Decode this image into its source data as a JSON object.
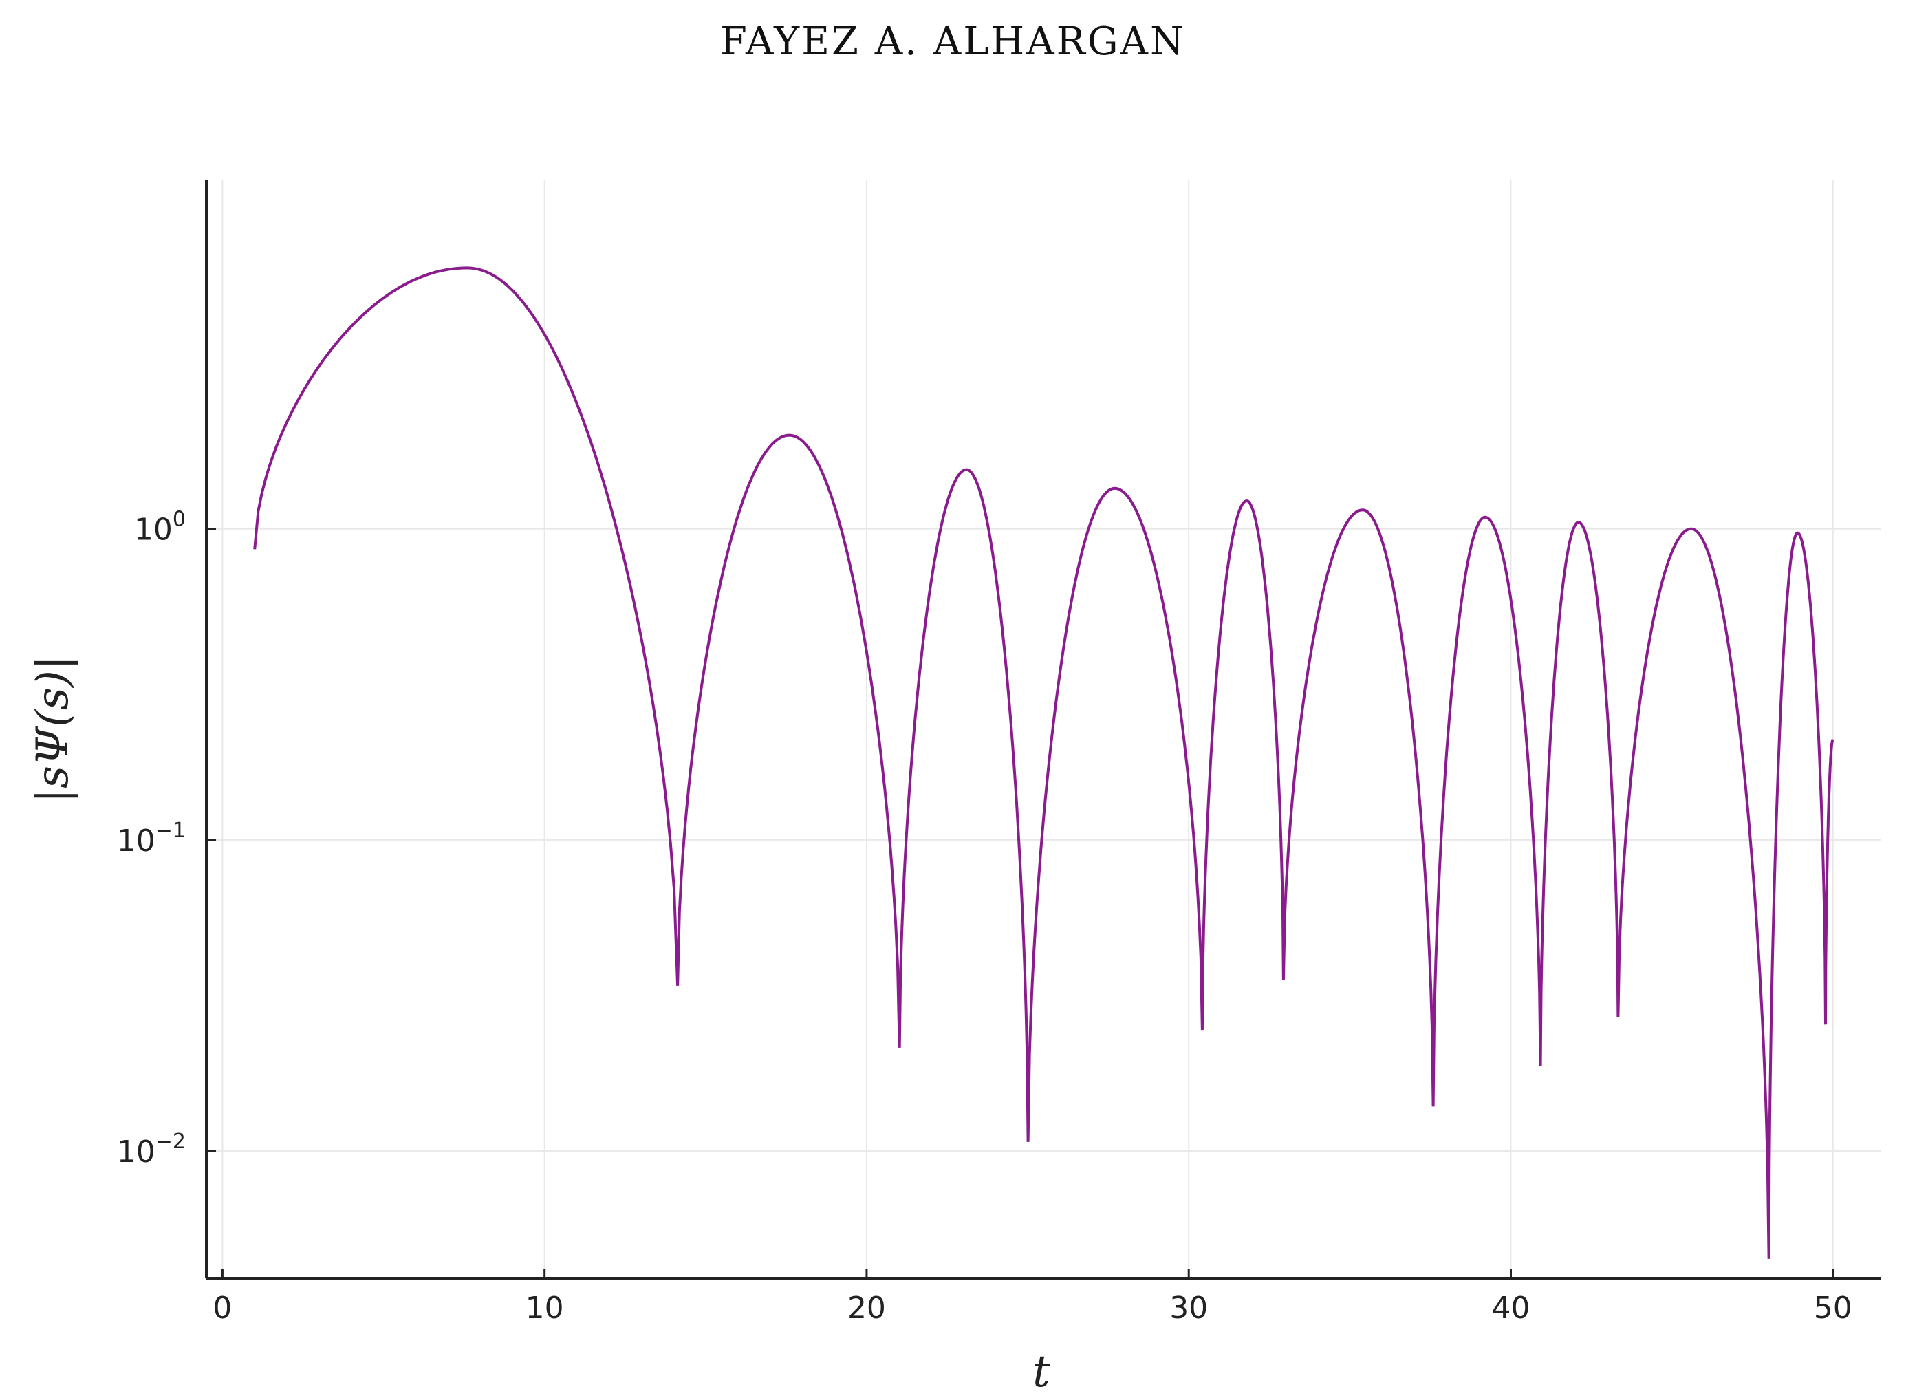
{
  "header": {
    "running_head": "FAYEZ A. ALHARGAN"
  },
  "chart_data": {
    "type": "line",
    "xlabel": "t",
    "ylabel": "|sΨ(s)|",
    "y_scale": "log10",
    "xlim": [
      -0.5,
      51.5
    ],
    "ylim": [
      0.0039,
      13.2
    ],
    "grid": true,
    "legend": "none",
    "line_color": "#8B1C8E",
    "x_ticks": [
      0,
      10,
      20,
      30,
      40,
      50
    ],
    "y_ticks": [
      {
        "value": 0.01,
        "base": "10",
        "exp": "−2"
      },
      {
        "value": 0.1,
        "base": "10",
        "exp": "−1"
      },
      {
        "value": 1,
        "base": "10",
        "exp": "0"
      }
    ],
    "series": [
      {
        "x": [
          1.0,
          7.6,
          14.13,
          17.6,
          21.02,
          23.1,
          25.01,
          27.7,
          30.42,
          31.8,
          32.94,
          35.4,
          37.59,
          39.2,
          40.92,
          42.1,
          43.33,
          45.6,
          48.01,
          48.9,
          49.77,
          50.0
        ],
        "y": [
          0.86,
          6.9,
          0.034,
          2.0,
          0.0215,
          1.55,
          0.0107,
          1.35,
          0.0245,
          1.23,
          0.0355,
          1.15,
          0.0139,
          1.09,
          0.0188,
          1.05,
          0.027,
          1.0,
          0.0045,
          0.97,
          0.0255,
          0.21
        ]
      }
    ]
  }
}
